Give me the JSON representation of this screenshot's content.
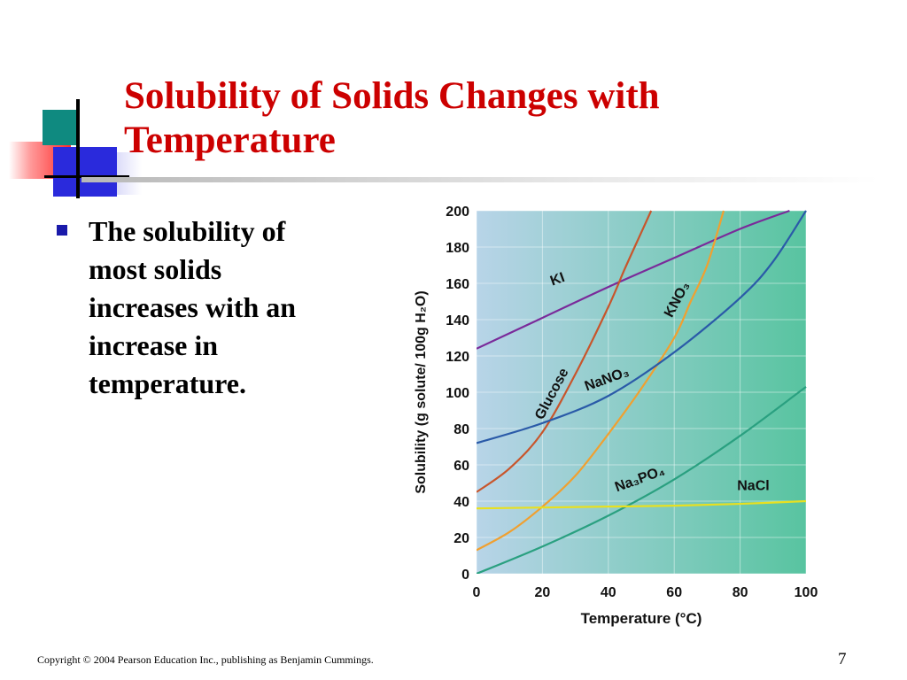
{
  "slide": {
    "title": "Solubility of Solids Changes with Temperature",
    "bullet": "The solubility of most solids increases with an increase in temperature.",
    "footer": "Copyright © 2004 Pearson Education Inc., publishing as Benjamin Cummings.",
    "page_number": "7"
  },
  "chart_data": {
    "type": "line",
    "xlabel": "Temperature (°C)",
    "ylabel": "Solubility (g solute/ 100g H₂O)",
    "xlim": [
      0,
      100
    ],
    "ylim": [
      0,
      200
    ],
    "x_ticks": [
      "0",
      "20",
      "40",
      "60",
      "80",
      "100"
    ],
    "y_ticks": [
      "0",
      "20",
      "40",
      "60",
      "80",
      "100",
      "120",
      "140",
      "160",
      "180",
      "200"
    ],
    "grid": true,
    "series": [
      {
        "name": "KI",
        "color": "#7a2a9a",
        "x": [
          0,
          20,
          40,
          60,
          80,
          95
        ],
        "y": [
          124,
          141,
          158,
          174,
          190,
          200
        ]
      },
      {
        "name": "Glucose",
        "color": "#c8552b",
        "x": [
          0,
          10,
          20,
          30,
          40,
          45,
          50,
          53
        ],
        "y": [
          45,
          58,
          78,
          110,
          147,
          168,
          188,
          200
        ]
      },
      {
        "name": "KNO₃",
        "color": "#f0a030",
        "x": [
          0,
          10,
          20,
          30,
          40,
          50,
          60,
          65,
          70,
          75
        ],
        "y": [
          13,
          23,
          37,
          54,
          77,
          102,
          130,
          150,
          170,
          200
        ]
      },
      {
        "name": "NaNO₃",
        "color": "#2a5aa8",
        "x": [
          0,
          20,
          40,
          60,
          80,
          90,
          100
        ],
        "y": [
          72,
          83,
          98,
          122,
          152,
          172,
          200
        ]
      },
      {
        "name": "Na₃PO₄",
        "color": "#2aa080",
        "x": [
          0,
          20,
          40,
          60,
          80,
          100
        ],
        "y": [
          0,
          15,
          32,
          52,
          76,
          103
        ]
      },
      {
        "name": "NaCl",
        "color": "#e8e020",
        "x": [
          0,
          20,
          40,
          60,
          80,
          100
        ],
        "y": [
          36,
          36.5,
          37,
          37.5,
          38.5,
          40
        ]
      }
    ],
    "colors": {
      "bg_left": "#b8d4e8",
      "bg_right": "#58c4a0"
    }
  }
}
